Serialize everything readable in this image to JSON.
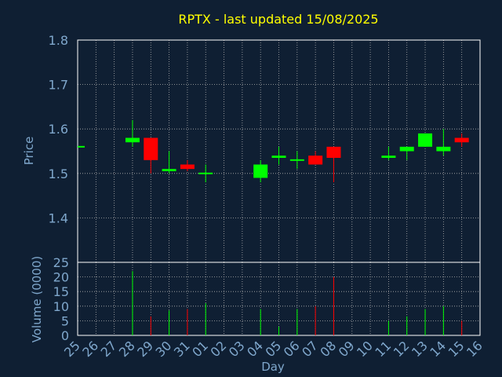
{
  "chart_data": {
    "type": "candlestick",
    "title": "RPTX - last updated 15/08/2025",
    "xlabel": "Day",
    "ylabel_price": "Price",
    "ylabel_volume": "Volume (0000)",
    "price_ylim": [
      1.3,
      1.8
    ],
    "price_yticks": [
      "1.4",
      "1.5",
      "1.6",
      "1.7",
      "1.8"
    ],
    "volume_ylim": [
      0,
      25
    ],
    "volume_yticks": [
      "0",
      "5",
      "10",
      "15",
      "20",
      "25"
    ],
    "grid": true,
    "days": [
      "25",
      "26",
      "27",
      "28",
      "29",
      "30",
      "31",
      "01",
      "02",
      "03",
      "04",
      "05",
      "06",
      "07",
      "08",
      "09",
      "10",
      "11",
      "12",
      "13",
      "14",
      "15",
      "16"
    ],
    "candles": [
      {
        "day": "25",
        "open": 1.56,
        "high": 1.56,
        "low": 1.56,
        "close": 1.56,
        "volume": 0
      },
      {
        "day": "28",
        "open": 1.57,
        "high": 1.62,
        "low": 1.56,
        "close": 1.58,
        "volume": 22
      },
      {
        "day": "29",
        "open": 1.58,
        "high": 1.58,
        "low": 1.5,
        "close": 1.53,
        "volume": 6.5
      },
      {
        "day": "30",
        "open": 1.505,
        "high": 1.55,
        "low": 1.5,
        "close": 1.51,
        "volume": 8.5
      },
      {
        "day": "31",
        "open": 1.52,
        "high": 1.53,
        "low": 1.505,
        "close": 1.51,
        "volume": 9
      },
      {
        "day": "01",
        "open": 1.5,
        "high": 1.52,
        "low": 1.48,
        "close": 1.5,
        "volume": 11
      },
      {
        "day": "04",
        "open": 1.49,
        "high": 1.53,
        "low": 1.48,
        "close": 1.52,
        "volume": 9
      },
      {
        "day": "05",
        "open": 1.535,
        "high": 1.56,
        "low": 1.52,
        "close": 1.54,
        "volume": 3
      },
      {
        "day": "06",
        "open": 1.53,
        "high": 1.55,
        "low": 1.51,
        "close": 1.53,
        "volume": 9
      },
      {
        "day": "07",
        "open": 1.54,
        "high": 1.55,
        "low": 1.52,
        "close": 1.52,
        "volume": 10
      },
      {
        "day": "08",
        "open": 1.56,
        "high": 1.56,
        "low": 1.48,
        "close": 1.535,
        "volume": 20
      },
      {
        "day": "11",
        "open": 1.535,
        "high": 1.56,
        "low": 1.53,
        "close": 1.54,
        "volume": 5
      },
      {
        "day": "12",
        "open": 1.55,
        "high": 1.56,
        "low": 1.53,
        "close": 1.56,
        "volume": 6.5
      },
      {
        "day": "13",
        "open": 1.56,
        "high": 1.59,
        "low": 1.56,
        "close": 1.59,
        "volume": 9
      },
      {
        "day": "14",
        "open": 1.55,
        "high": 1.6,
        "low": 1.54,
        "close": 1.56,
        "volume": 10
      },
      {
        "day": "15",
        "open": 1.58,
        "high": 1.59,
        "low": 1.56,
        "close": 1.57,
        "volume": 5
      }
    ],
    "colors": {
      "background": "#0f1f33",
      "up": "#00ff00",
      "down": "#ff0000",
      "title": "#ffff00",
      "axis_text": "#7fa7cc",
      "grid": "#b0b0b0"
    }
  }
}
